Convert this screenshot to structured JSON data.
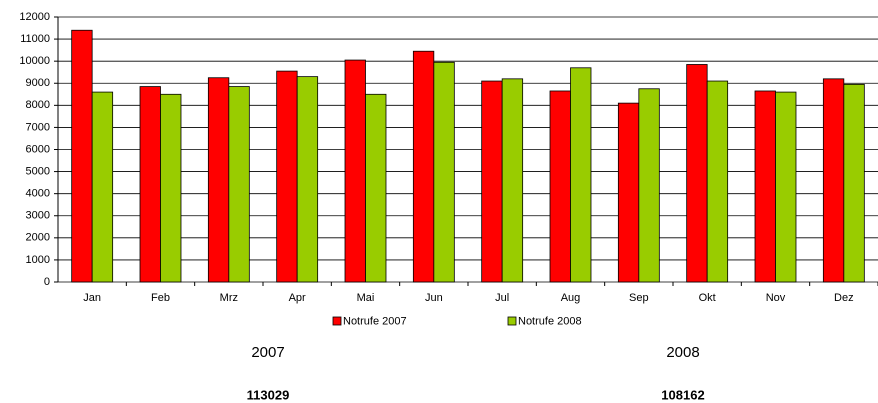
{
  "chart_data": {
    "type": "bar",
    "categories": [
      "Jan",
      "Feb",
      "Mrz",
      "Apr",
      "Mai",
      "Jun",
      "Jul",
      "Aug",
      "Sep",
      "Okt",
      "Nov",
      "Dez"
    ],
    "series": [
      {
        "name": "Notrufe 2007",
        "color": "#ff0000",
        "values": [
          11400,
          8850,
          9250,
          9550,
          10050,
          10450,
          9100,
          8650,
          8100,
          9850,
          8650,
          9200
        ]
      },
      {
        "name": "Notrufe 2008",
        "color": "#99cc00",
        "values": [
          8600,
          8500,
          8850,
          9300,
          8500,
          9950,
          9200,
          9700,
          8750,
          9100,
          8600,
          8950
        ]
      }
    ],
    "ylim": [
      0,
      12000
    ],
    "yticks": [
      0,
      1000,
      2000,
      3000,
      4000,
      5000,
      6000,
      7000,
      8000,
      9000,
      10000,
      11000,
      12000
    ],
    "grid": true,
    "legend": "bottom",
    "totals": [
      {
        "year": "2007",
        "value": 113029
      },
      {
        "year": "2008",
        "value": 108162
      }
    ]
  }
}
